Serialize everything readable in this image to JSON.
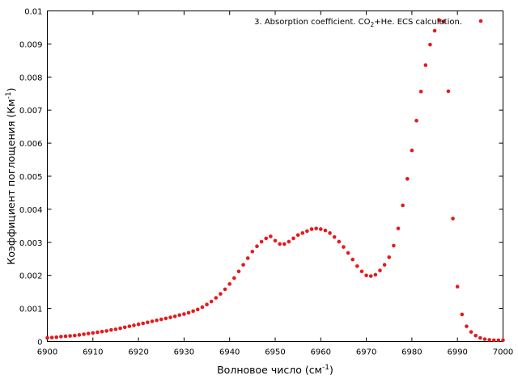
{
  "chart_data": {
    "type": "scatter",
    "xlabel": "Волновое число (см",
    "xlabel_sup": "-1",
    "xlabel_close": ")",
    "ylabel": "Коэффициент поглощения (Км",
    "ylabel_sup": "-1",
    "ylabel_close": ")",
    "xlim": [
      6900,
      7000
    ],
    "ylim": [
      0,
      0.01
    ],
    "xticks": [
      "6900",
      "6910",
      "6920",
      "6930",
      "6940",
      "6950",
      "6960",
      "6970",
      "6980",
      "6990",
      "7000"
    ],
    "yticks": [
      "0",
      "0.001",
      "0.002",
      "0.003",
      "0.004",
      "0.005",
      "0.006",
      "0.007",
      "0.008",
      "0.009",
      "0.01"
    ],
    "grid": false,
    "legend_position": "top-right",
    "series": [
      {
        "name": "3. Absorption coefficient. CO2+He. ECS calculation.",
        "name_prefix": "3. Absorption coefficient. CO",
        "name_sub": "2",
        "name_suffix": "+He. ECS calculation.",
        "color": "#e41a1c",
        "x": [
          6900,
          6901,
          6902,
          6903,
          6904,
          6905,
          6906,
          6907,
          6908,
          6909,
          6910,
          6911,
          6912,
          6913,
          6914,
          6915,
          6916,
          6917,
          6918,
          6919,
          6920,
          6921,
          6922,
          6923,
          6924,
          6925,
          6926,
          6927,
          6928,
          6929,
          6930,
          6931,
          6932,
          6933,
          6934,
          6935,
          6936,
          6937,
          6938,
          6939,
          6940,
          6941,
          6942,
          6943,
          6944,
          6945,
          6946,
          6947,
          6948,
          6949,
          6950,
          6951,
          6952,
          6953,
          6954,
          6955,
          6956,
          6957,
          6958,
          6959,
          6960,
          6961,
          6962,
          6963,
          6964,
          6965,
          6966,
          6967,
          6968,
          6969,
          6970,
          6971,
          6972,
          6973,
          6974,
          6975,
          6976,
          6977,
          6978,
          6979,
          6980,
          6981,
          6982,
          6983,
          6984,
          6985,
          6986,
          6987,
          6988,
          6989,
          6990,
          6991,
          6992,
          6993,
          6994,
          6995,
          6996,
          6997,
          6998,
          6999,
          7000
        ],
        "y": [
          0.00011,
          0.00012,
          0.00013,
          0.00015,
          0.00016,
          0.00017,
          0.00018,
          0.0002,
          0.00022,
          0.00024,
          0.00026,
          0.00028,
          0.0003,
          0.00032,
          0.00035,
          0.00037,
          0.0004,
          0.00043,
          0.00046,
          0.00049,
          0.00052,
          0.00055,
          0.00058,
          0.00061,
          0.00064,
          0.00067,
          0.0007,
          0.00073,
          0.00076,
          0.0008,
          0.00083,
          0.00087,
          0.00092,
          0.00097,
          0.00104,
          0.00112,
          0.00121,
          0.00132,
          0.00144,
          0.00158,
          0.00174,
          0.00192,
          0.00212,
          0.00232,
          0.00252,
          0.00272,
          0.00288,
          0.00302,
          0.00312,
          0.00318,
          0.00305,
          0.00295,
          0.00295,
          0.00302,
          0.00312,
          0.00322,
          0.00328,
          0.00334,
          0.0034,
          0.00342,
          0.0034,
          0.00336,
          0.00328,
          0.00316,
          0.00302,
          0.00286,
          0.00268,
          0.00248,
          0.00228,
          0.00212,
          0.002,
          0.00198,
          0.00202,
          0.00215,
          0.00232,
          0.00255,
          0.0029,
          0.00342,
          0.00412,
          0.00492,
          0.00578,
          0.00668,
          0.00756,
          0.00836,
          0.00898,
          0.0094,
          0.00972,
          0.00968,
          0.00757,
          0.00372,
          0.00166,
          0.00082,
          0.00046,
          0.00029,
          0.00018,
          0.00011,
          7e-05,
          5e-05,
          4e-05,
          4e-05,
          4e-05
        ]
      }
    ]
  }
}
